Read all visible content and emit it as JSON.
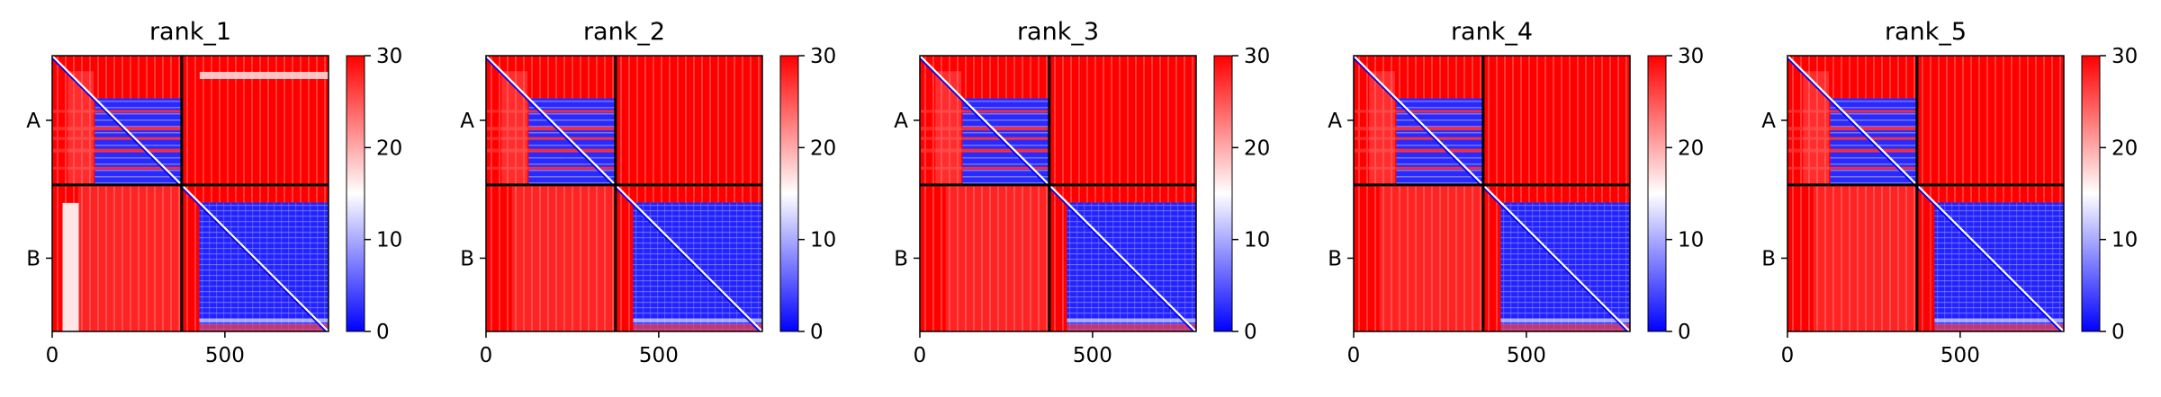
{
  "chart_data": {
    "type": "heatmap",
    "colormap": {
      "low": "#0000ff",
      "mid": "#ffffff",
      "high": "#ff0000"
    },
    "colorbar": {
      "range": [
        0,
        30
      ],
      "ticks": [
        "0",
        "10",
        "20",
        "30"
      ]
    },
    "chains": [
      "A",
      "B"
    ],
    "xticks": [
      "0",
      "500"
    ],
    "chain_boundary": 375,
    "total_length": 800,
    "panels": [
      {
        "title": "rank_1"
      },
      {
        "title": "rank_2"
      },
      {
        "title": "rank_3"
      },
      {
        "title": "rank_4"
      },
      {
        "title": "rank_5"
      }
    ]
  }
}
